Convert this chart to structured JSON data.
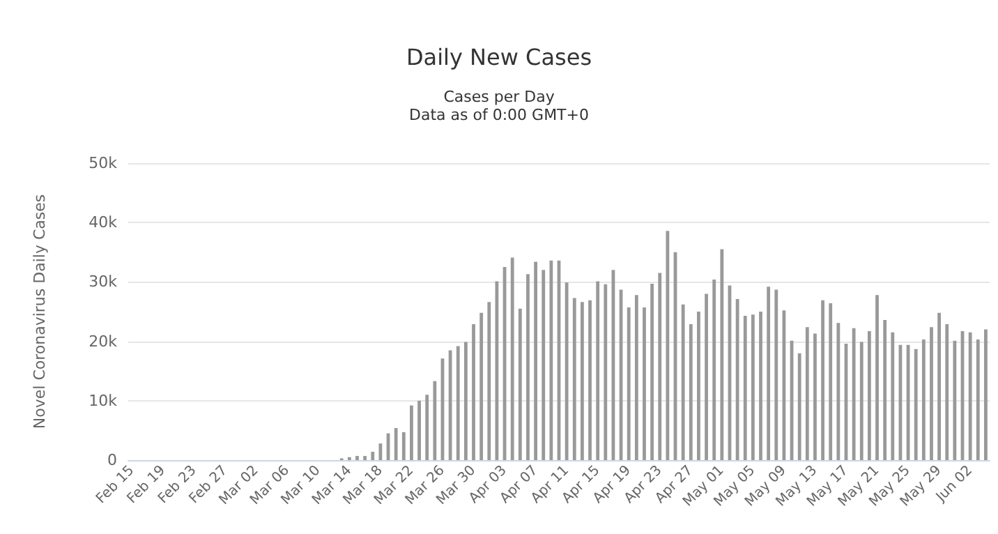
{
  "chart_data": {
    "type": "bar",
    "title": "Daily New Cases",
    "subtitle": "Cases per Day\nData as of 0:00 GMT+0",
    "ylabel": "Novel Coronavirus Daily Cases",
    "categories": [
      "Feb 15",
      null,
      null,
      null,
      "Feb 19",
      null,
      null,
      null,
      "Feb 23",
      null,
      null,
      null,
      "Feb 27",
      null,
      null,
      null,
      "Mar 02",
      null,
      null,
      null,
      "Mar 06",
      null,
      null,
      null,
      "Mar 10",
      null,
      null,
      null,
      "Mar 14",
      null,
      null,
      null,
      "Mar 18",
      null,
      null,
      null,
      "Mar 22",
      null,
      null,
      null,
      "Mar 26",
      null,
      null,
      null,
      "Mar 30",
      null,
      null,
      null,
      "Apr 03",
      null,
      null,
      null,
      "Apr 07",
      null,
      null,
      null,
      "Apr 11",
      null,
      null,
      null,
      "Apr 15",
      null,
      null,
      null,
      "Apr 19",
      null,
      null,
      null,
      "Apr 23",
      null,
      null,
      null,
      "Apr 27",
      null,
      null,
      null,
      "May 01",
      null,
      null,
      null,
      "May 05",
      null,
      null,
      null,
      "May 09",
      null,
      null,
      null,
      "May 13",
      null,
      null,
      null,
      "May 17",
      null,
      null,
      null,
      "May 21",
      null,
      null,
      null,
      "May 25",
      null,
      null,
      null,
      "May 29",
      null,
      null,
      null,
      "Jun 02",
      null,
      null
    ],
    "values": [
      0,
      0,
      0,
      0,
      0,
      0,
      0,
      0,
      0,
      0,
      0,
      0,
      0,
      0,
      0,
      0,
      0,
      0,
      0,
      0,
      0,
      0,
      0,
      0,
      0,
      0,
      0,
      300,
      500,
      700,
      700,
      1400,
      2800,
      4500,
      5400,
      4700,
      9200,
      10000,
      11000,
      13300,
      17100,
      18500,
      19200,
      19900,
      22900,
      24800,
      26600,
      30100,
      32500,
      34100,
      25500,
      31300,
      33400,
      32000,
      33600,
      33600,
      29900,
      27300,
      26600,
      26900,
      30100,
      29600,
      32000,
      28700,
      25700,
      27800,
      25700,
      29700,
      31500,
      38600,
      35000,
      26200,
      22900,
      25000,
      28000,
      30400,
      35500,
      29400,
      27100,
      24300,
      24500,
      25000,
      29200,
      28700,
      25200,
      20100,
      18000,
      22400,
      21300,
      26900,
      26400,
      23100,
      19600,
      22200,
      19900,
      21700,
      27800,
      23600,
      21500,
      19400,
      19400,
      18700,
      20300,
      22400,
      24800,
      22900,
      20100,
      21700,
      21500,
      20300,
      22000
    ],
    "color": "#999999",
    "ylim": [
      0,
      50000
    ],
    "yticks": [
      {
        "value": 0,
        "label": "0"
      },
      {
        "value": 10000,
        "label": "10k"
      },
      {
        "value": 20000,
        "label": "20k"
      },
      {
        "value": 30000,
        "label": "30k"
      },
      {
        "value": 40000,
        "label": "40k"
      },
      {
        "value": 50000,
        "label": "50k"
      }
    ],
    "grid": "y"
  }
}
